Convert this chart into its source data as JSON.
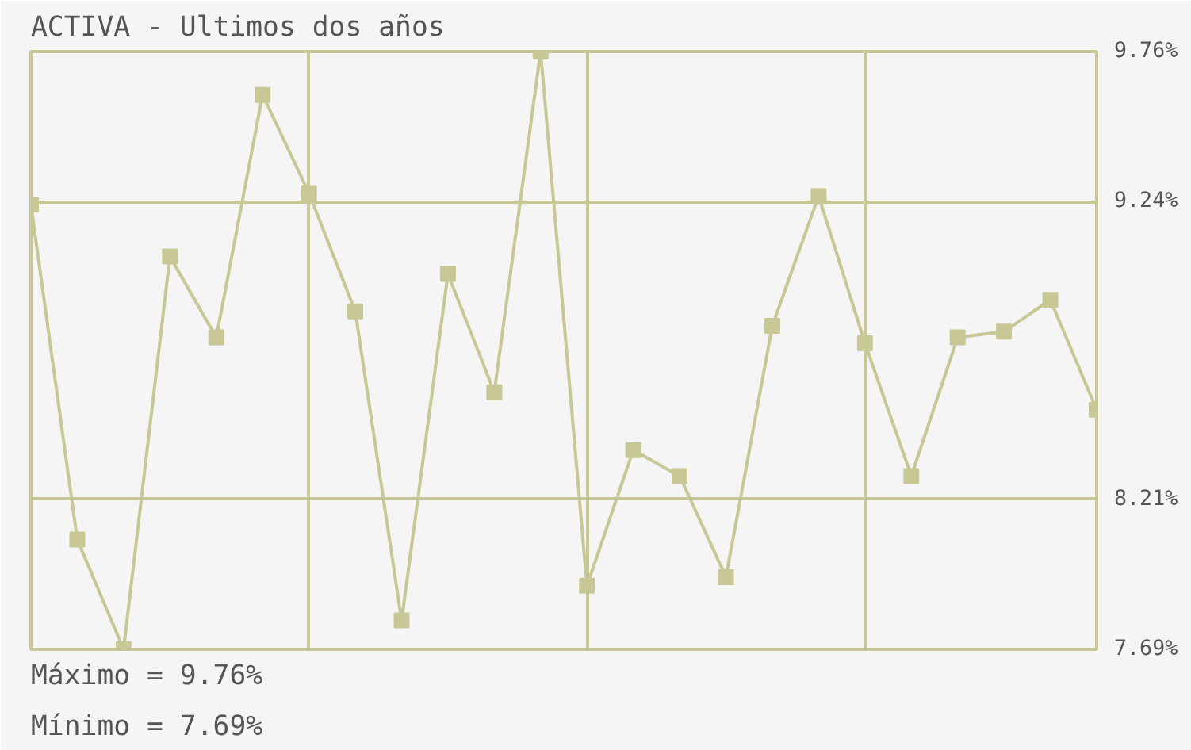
{
  "chart_data": {
    "type": "line",
    "title": "ACTIVA - Ultimos dos años",
    "categories": [
      null,
      null,
      null,
      null,
      null,
      null,
      null,
      null,
      null,
      null,
      null,
      null,
      null,
      null,
      null,
      null,
      null,
      null,
      null,
      null,
      null,
      null,
      null,
      null
    ],
    "series": [
      {
        "color": "#c8c896",
        "values": [
          9.23,
          8.07,
          7.69,
          9.05,
          8.77,
          9.61,
          9.27,
          8.86,
          7.79,
          8.99,
          8.58,
          9.76,
          7.91,
          8.38,
          8.29,
          7.94,
          8.81,
          9.26,
          8.75,
          8.29,
          8.77,
          8.79,
          8.9,
          8.52
        ]
      }
    ],
    "ylim": [
      7.69,
      9.76
    ],
    "yticks": [
      {
        "value": 7.69,
        "label": "7.69%"
      },
      {
        "value": 8.21,
        "label": "8.21%"
      },
      {
        "value": 9.24,
        "label": "9.24%"
      },
      {
        "value": 9.76,
        "label": "9.76%"
      }
    ],
    "tick_labels": "y",
    "grid": true,
    "marker": "square",
    "line_style": "solid",
    "annotations": [
      "Máximo = 9.76%",
      "Mínimo = 7.69%"
    ]
  }
}
